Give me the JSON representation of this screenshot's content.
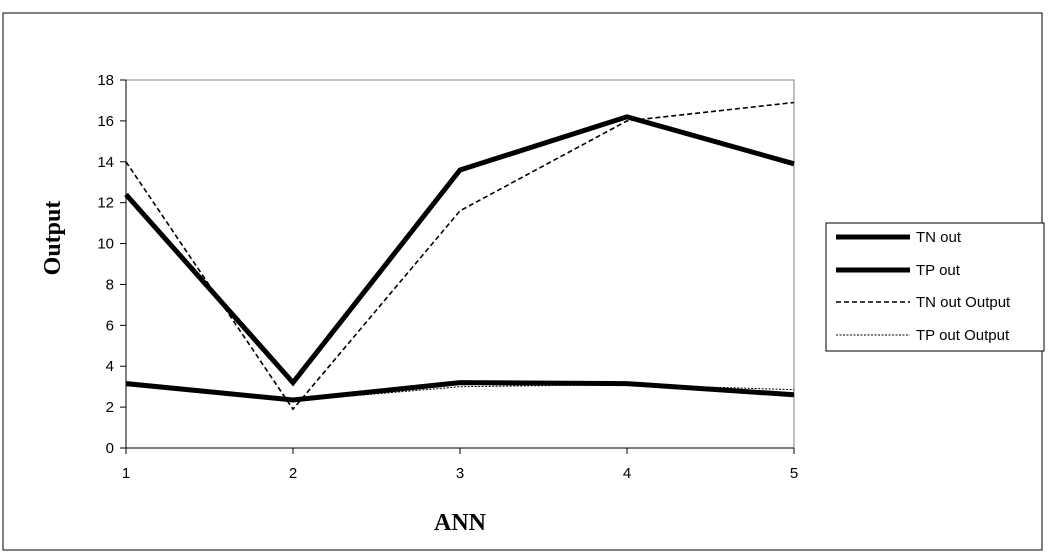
{
  "chart_data": {
    "type": "line",
    "title": "",
    "xlabel": "ANN",
    "ylabel": "Output",
    "x": [
      1,
      2,
      3,
      4,
      5
    ],
    "xlim": [
      1,
      5
    ],
    "ylim": [
      0,
      18
    ],
    "yticks": [
      0,
      2,
      4,
      6,
      8,
      10,
      12,
      14,
      16,
      18
    ],
    "xticks": [
      1,
      2,
      3,
      4,
      5
    ],
    "grid": false,
    "legend_position": "right",
    "series": [
      {
        "name": "TN out",
        "values": [
          12.4,
          3.2,
          13.6,
          16.2,
          13.9
        ],
        "style": "thick-solid",
        "color": "#000000"
      },
      {
        "name": "TP out",
        "values": [
          3.15,
          2.35,
          3.2,
          3.15,
          2.6
        ],
        "style": "thick-solid",
        "color": "#000000"
      },
      {
        "name": "TN out Output",
        "values": [
          14.0,
          1.9,
          11.6,
          16.0,
          16.9
        ],
        "style": "dashed",
        "color": "#000000"
      },
      {
        "name": "TP out Output",
        "values": [
          3.05,
          2.3,
          3.0,
          3.1,
          2.85
        ],
        "style": "dotted",
        "color": "#000000"
      }
    ]
  }
}
